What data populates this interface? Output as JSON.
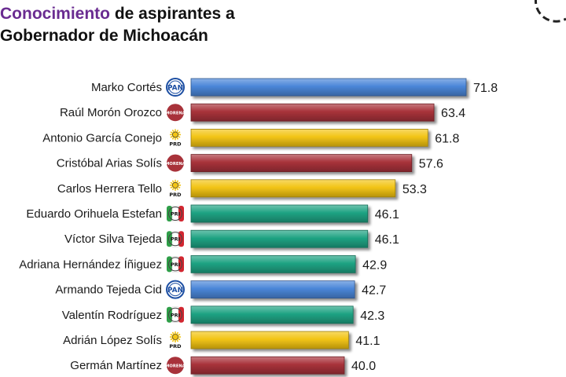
{
  "header": {
    "title_accent": "Conocimiento",
    "title_rest": " de aspirantes a",
    "title_line2": "Gobernador de Michoacán"
  },
  "party_colors": {
    "PAN": "#4a86d8",
    "MORENA": "#a8323a",
    "PRD": "#f2c414",
    "PRI": "#1fa383"
  },
  "party_logos": {
    "PAN": "PAN",
    "MORENA": "MORENA",
    "PRD": "PRD",
    "PRI": "PRI"
  },
  "chart_data": {
    "type": "bar",
    "orientation": "horizontal",
    "title": "Conocimiento de aspirantes a Gobernador de Michoacán",
    "categories": [
      "Marko Cortés",
      "Raúl Morón Orozco",
      "Antonio García Conejo",
      "Cristóbal Arias Solís",
      "Carlos Herrera Tello",
      "Eduardo Orihuela Estefan",
      "Víctor Silva Tejeda",
      "Adriana Hernández Íñiguez",
      "Armando Tejeda Cid",
      "Valentín Rodríguez",
      "Adrián López Solís",
      "Germán Martínez"
    ],
    "parties": [
      "PAN",
      "MORENA",
      "PRD",
      "MORENA",
      "PRD",
      "PRI",
      "PRI",
      "PRI",
      "PAN",
      "PRI",
      "PRD",
      "MORENA"
    ],
    "values": [
      71.8,
      63.4,
      61.8,
      57.6,
      53.3,
      46.1,
      46.1,
      42.9,
      42.7,
      42.3,
      41.1,
      40.0
    ],
    "value_labels": [
      "71.8",
      "63.4",
      "61.8",
      "57.6",
      "53.3",
      "46.1",
      "46.1",
      "42.9",
      "42.7",
      "42.3",
      "41.1",
      "40.0"
    ],
    "xlabel": "",
    "ylabel": "",
    "grid": false,
    "legend": "none"
  }
}
